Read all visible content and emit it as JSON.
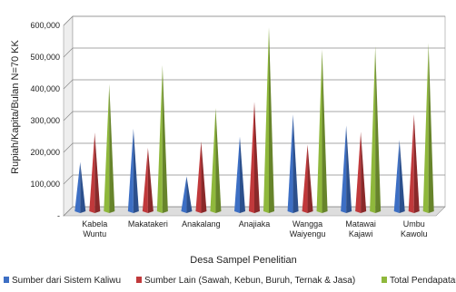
{
  "chart_data": {
    "type": "bar",
    "title": "",
    "xlabel": "Desa Sampel Penelitian",
    "ylabel": "Rupiah/Kapita/Bulan  N=70 KK",
    "ylim": [
      0,
      600000
    ],
    "yticks": [
      "-",
      "100,000",
      "200,000",
      "300,000",
      "400,000",
      "500,000",
      "600,000"
    ],
    "grid": true,
    "legend_position": "bottom",
    "categories": [
      [
        "Kabela",
        "Wuntu"
      ],
      [
        "Makatakeri"
      ],
      [
        "Anakalang"
      ],
      [
        "Anajiaka"
      ],
      [
        "Wangga",
        "Waiyengu"
      ],
      [
        "Matawai",
        "Kajawi"
      ],
      [
        "Umbu",
        "Kawolu"
      ]
    ],
    "series": [
      {
        "name": "Sumber dari Sistem Kaliwu",
        "color": "#3d6fc4",
        "values": [
          155000,
          260000,
          110000,
          235000,
          305000,
          270000,
          225000
        ]
      },
      {
        "name": "Sumber Lain (Sawah, Kebun, Buruh, Ternak & Jasa)",
        "color": "#c0393b",
        "values": [
          248000,
          200000,
          220000,
          345000,
          210000,
          250000,
          305000
        ]
      },
      {
        "name": "Total Pendapatan",
        "color": "#8fb83c",
        "values": [
          400000,
          460000,
          325000,
          580000,
          510000,
          520000,
          530000
        ]
      }
    ]
  }
}
